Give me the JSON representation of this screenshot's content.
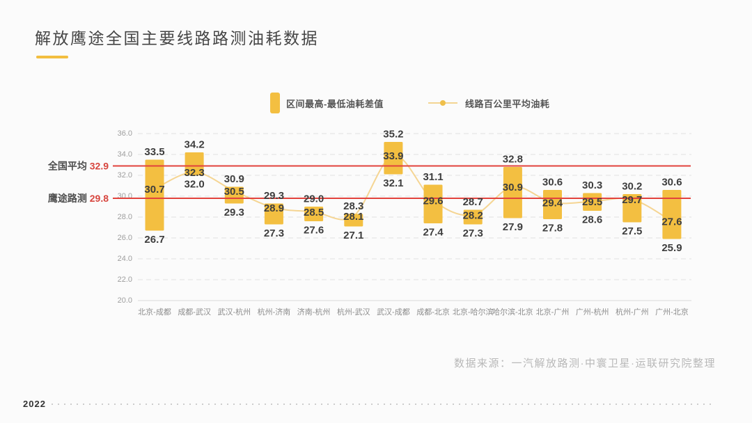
{
  "title": "解放鹰途全国主要线路路测油耗数据",
  "legend": {
    "bar_label": "区间最高-最低油耗差值",
    "line_label": "线路百公里平均油耗"
  },
  "reference_lines": [
    {
      "label": "全国平均",
      "value": 32.9
    },
    {
      "label": "鹰途路测",
      "value": 29.8
    }
  ],
  "source": "数据来源：一汽解放路测·中寰卫星·运联研究院整理",
  "footer_year": "2022",
  "colors": {
    "bar": "#F3BF41",
    "line": "#F5D593",
    "marker": "#EFC052",
    "reference_line": "#E2423C",
    "reference_value_text": "#D7453E",
    "reference_label_text": "#4F4F4F",
    "value_label": "#3E3E3E",
    "axis_tick_text": "#9E9E9E",
    "x_label_text": "#8C8C8C",
    "gridline": "#E2E2E2",
    "baseline": "#D8D8D8",
    "accent_underline": "#F2BE3F"
  },
  "chart_data": {
    "type": "bar",
    "title": "解放鹰途全国主要线路路测油耗数据",
    "categories": [
      "北京-成都",
      "成都-武汉",
      "武汉-杭州",
      "杭州-济南",
      "济南-杭州",
      "杭州-武汉",
      "武汉-成都",
      "成都-北京",
      "北京-哈尔滨",
      "哈尔滨-北京",
      "北京-广州",
      "广州-杭州",
      "杭州-广州",
      "广州-北京"
    ],
    "series": [
      {
        "name": "区间最高油耗",
        "role": "bar-high",
        "values": [
          33.5,
          34.2,
          30.9,
          29.3,
          29.0,
          28.3,
          35.2,
          31.1,
          28.7,
          32.8,
          30.6,
          30.3,
          30.2,
          30.6
        ]
      },
      {
        "name": "区间最低油耗",
        "role": "bar-low",
        "values": [
          26.7,
          32.0,
          29.3,
          27.3,
          27.6,
          27.1,
          32.1,
          27.4,
          27.3,
          27.9,
          27.8,
          28.6,
          27.5,
          25.9
        ]
      },
      {
        "name": "线路百公里平均油耗",
        "role": "line",
        "values": [
          30.7,
          32.3,
          30.5,
          28.9,
          28.5,
          28.1,
          33.9,
          29.6,
          28.2,
          30.9,
          29.4,
          29.5,
          29.7,
          27.6
        ]
      }
    ],
    "xlabel": "",
    "ylabel": "",
    "ylim": [
      20,
      36
    ],
    "ytick_step": 2,
    "grid": "horizontal-dashed",
    "legend_position": "top"
  }
}
